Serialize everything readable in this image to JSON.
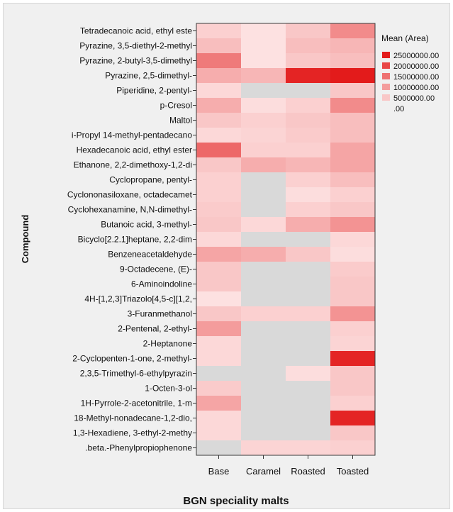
{
  "chart_data": {
    "type": "heatmap",
    "title": "",
    "xlabel": "BGN speciality malts",
    "ylabel": "Compound",
    "columns": [
      "Base",
      "Caramel",
      "Roasted",
      "Toasted"
    ],
    "rows": [
      "Tetradecanoic acid, ethyl este",
      "Pyrazine, 3,5-diethyl-2-methyl",
      "Pyrazine, 2-butyl-3,5-dimethyl",
      "Pyrazine, 2,5-dimethyl-",
      "Piperidine, 2-pentyl-",
      "p-Cresol",
      "Maltol",
      "i-Propyl 14-methyl-pentadecano",
      "Hexadecanoic acid, ethyl ester",
      "Ethanone, 2,2-dimethoxy-1,2-di",
      "Cyclopropane, pentyl-",
      "Cyclononasiloxane, octadecamet",
      "Cyclohexanamine, N,N-dimethyl-",
      "Butanoic acid, 3-methyl-",
      "Bicyclo[2.2.1]heptane, 2,2-dim",
      "Benzeneacetaldehyde",
      "9-Octadecene, (E)-",
      "6-Aminoindoline",
      "4H-[1,2,3]Triazolo[4,5-c][1,2,",
      "3-Furanmethanol",
      "2-Pentenal, 2-ethyl-",
      "2-Heptanone",
      "2-Cyclopenten-1-one, 2-methyl-",
      "2,3,5-Trimethyl-6-ethylpyrazin",
      "1-Octen-3-ol",
      "1H-Pyrrole-2-acetonitrile, 1-m",
      "18-Methyl-nonadecane-1,2-dio,",
      "1,3-Hexadiene, 3-ethyl-2-methy",
      ".beta.-Phenylpropiophenone"
    ],
    "values": [
      [
        4000000,
        2000000,
        5000000,
        12000000
      ],
      [
        6000000,
        2000000,
        6000000,
        7000000
      ],
      [
        14000000,
        2000000,
        5000000,
        6000000
      ],
      [
        8000000,
        7000000,
        24000000,
        25000000
      ],
      [
        3000000,
        null,
        null,
        5000000
      ],
      [
        8000000,
        2500000,
        4000000,
        12000000
      ],
      [
        5000000,
        4000000,
        5000000,
        6000000
      ],
      [
        3000000,
        3500000,
        4500000,
        6000000
      ],
      [
        16000000,
        4000000,
        4000000,
        9000000
      ],
      [
        5000000,
        8000000,
        7000000,
        9000000
      ],
      [
        4000000,
        null,
        4000000,
        6000000
      ],
      [
        4000000,
        null,
        2500000,
        4000000
      ],
      [
        4500000,
        null,
        4000000,
        5000000
      ],
      [
        5000000,
        3000000,
        8000000,
        11000000
      ],
      [
        3000000,
        null,
        null,
        3000000
      ],
      [
        9000000,
        8000000,
        5000000,
        2500000
      ],
      [
        5000000,
        null,
        null,
        4500000
      ],
      [
        5000000,
        null,
        null,
        5000000
      ],
      [
        2000000,
        null,
        null,
        5000000
      ],
      [
        5000000,
        4000000,
        4000000,
        11000000
      ],
      [
        10000000,
        null,
        null,
        4000000
      ],
      [
        3000000,
        null,
        null,
        3500000
      ],
      [
        3000000,
        null,
        null,
        24000000
      ],
      [
        null,
        null,
        2500000,
        5000000
      ],
      [
        4500000,
        null,
        null,
        5000000
      ],
      [
        9000000,
        null,
        null,
        4000000
      ],
      [
        3000000,
        null,
        null,
        24000000
      ],
      [
        3000000,
        null,
        null,
        5000000
      ],
      [
        null,
        3500000,
        3500000,
        4000000
      ]
    ],
    "legend": {
      "title": "Mean (Area)",
      "position": "top-right",
      "entries": [
        "25000000.00",
        "20000000.00",
        "15000000.00",
        "10000000.00",
        "5000000.00",
        ".00"
      ]
    },
    "scale": {
      "min": 0,
      "max": 25000000,
      "low_color": "#fff2f2",
      "high_color": "#e31b1b",
      "missing_color": "#d9d9d9"
    }
  }
}
